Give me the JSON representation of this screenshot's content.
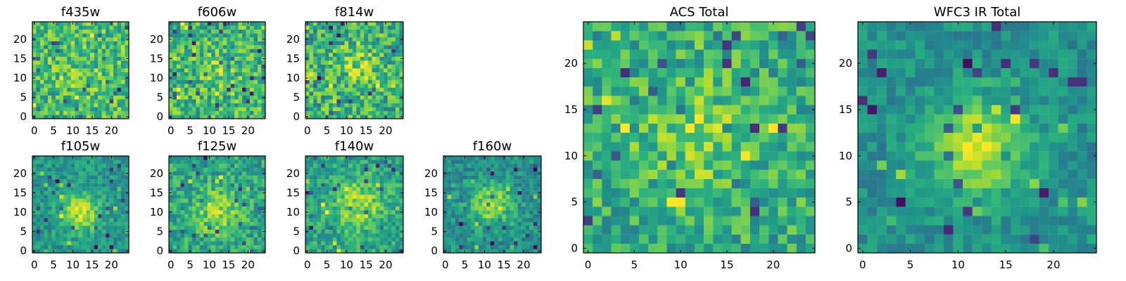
{
  "chart_data": {
    "type": "heatmap",
    "colormap": "viridis",
    "grid": false,
    "colors": {
      "viridis": [
        "#440154",
        "#472c7a",
        "#3b528b",
        "#2c728e",
        "#21918c",
        "#28ae80",
        "#5ec962",
        "#addc30",
        "#fde725"
      ],
      "background": "#ffffff",
      "axes": "#000000"
    },
    "panels": [
      {
        "id": "f435w",
        "title": "f435w",
        "xlim": [
          0,
          25
        ],
        "ylim": [
          0,
          25
        ],
        "xticks": [
          0,
          5,
          10,
          15,
          20
        ],
        "yticks": [
          0,
          5,
          10,
          15,
          20
        ],
        "xtick_labels": [
          "0",
          "5",
          "10",
          "15",
          "20"
        ],
        "ytick_labels": [
          "0",
          "5",
          "10",
          "15",
          "20"
        ],
        "pixels": 25,
        "seed": 101,
        "background_level": 0.68,
        "noise": 0.22,
        "source_center": [
          12,
          10
        ],
        "source_peak": 0.08,
        "source_sigma": 4.0
      },
      {
        "id": "f606w",
        "title": "f606w",
        "xlim": [
          0,
          25
        ],
        "ylim": [
          0,
          25
        ],
        "xticks": [
          0,
          5,
          10,
          15,
          20
        ],
        "yticks": [
          0,
          5,
          10,
          15,
          20
        ],
        "xtick_labels": [
          "0",
          "5",
          "10",
          "15",
          "20"
        ],
        "ytick_labels": [
          "0",
          "5",
          "10",
          "15",
          "20"
        ],
        "pixels": 25,
        "seed": 202,
        "background_level": 0.65,
        "noise": 0.23,
        "source_center": [
          12,
          12
        ],
        "source_peak": 0.12,
        "source_sigma": 4.0
      },
      {
        "id": "f814w",
        "title": "f814w",
        "xlim": [
          0,
          25
        ],
        "ylim": [
          0,
          25
        ],
        "xticks": [
          0,
          5,
          10,
          15,
          20
        ],
        "yticks": [
          0,
          5,
          10,
          15,
          20
        ],
        "xtick_labels": [
          "0",
          "5",
          "10",
          "15",
          "20"
        ],
        "ytick_labels": [
          "0",
          "5",
          "10",
          "15",
          "20"
        ],
        "pixels": 25,
        "seed": 303,
        "background_level": 0.63,
        "noise": 0.24,
        "source_center": [
          13,
          13
        ],
        "source_peak": 0.18,
        "source_sigma": 3.8
      },
      {
        "id": "f105w",
        "title": "f105w",
        "xlim": [
          0,
          25
        ],
        "ylim": [
          0,
          25
        ],
        "xticks": [
          0,
          5,
          10,
          15,
          20
        ],
        "yticks": [
          0,
          5,
          10,
          15,
          20
        ],
        "xtick_labels": [
          "0",
          "5",
          "10",
          "15",
          "20"
        ],
        "ytick_labels": [
          "0",
          "5",
          "10",
          "15",
          "20"
        ],
        "pixels": 25,
        "seed": 404,
        "background_level": 0.52,
        "noise": 0.14,
        "source_center": [
          12,
          10
        ],
        "source_peak": 0.38,
        "source_sigma": 3.6
      },
      {
        "id": "f125w",
        "title": "f125w",
        "xlim": [
          0,
          25
        ],
        "ylim": [
          0,
          25
        ],
        "xticks": [
          0,
          5,
          10,
          15,
          20
        ],
        "yticks": [
          0,
          5,
          10,
          15,
          20
        ],
        "xtick_labels": [
          "0",
          "5",
          "10",
          "15",
          "20"
        ],
        "ytick_labels": [
          "0",
          "5",
          "10",
          "15",
          "20"
        ],
        "pixels": 25,
        "seed": 505,
        "background_level": 0.58,
        "noise": 0.18,
        "source_center": [
          12,
          10
        ],
        "source_peak": 0.26,
        "source_sigma": 4.2
      },
      {
        "id": "f140w",
        "title": "f140w",
        "xlim": [
          0,
          25
        ],
        "ylim": [
          0,
          25
        ],
        "xticks": [
          0,
          5,
          10,
          15,
          20
        ],
        "yticks": [
          0,
          5,
          10,
          15,
          20
        ],
        "xtick_labels": [
          "0",
          "5",
          "10",
          "15",
          "20"
        ],
        "ytick_labels": [
          "0",
          "5",
          "10",
          "15",
          "20"
        ],
        "pixels": 25,
        "seed": 606,
        "background_level": 0.58,
        "noise": 0.16,
        "source_center": [
          13,
          12
        ],
        "source_peak": 0.28,
        "source_sigma": 4.5
      },
      {
        "id": "f160w",
        "title": "f160w",
        "xlim": [
          0,
          25
        ],
        "ylim": [
          0,
          25
        ],
        "xticks": [
          0,
          5,
          10,
          15,
          20
        ],
        "yticks": [
          0,
          5,
          10,
          15,
          20
        ],
        "xtick_labels": [
          "0",
          "5",
          "10",
          "15",
          "20"
        ],
        "ytick_labels": [
          "0",
          "5",
          "10",
          "15",
          "20"
        ],
        "pixels": 25,
        "seed": 707,
        "background_level": 0.5,
        "noise": 0.15,
        "source_center": [
          12,
          12
        ],
        "source_peak": 0.4,
        "source_sigma": 3.4
      },
      {
        "id": "acs-total",
        "title": "ACS Total",
        "xlim": [
          0,
          25
        ],
        "ylim": [
          0,
          25
        ],
        "xticks": [
          0,
          5,
          10,
          15,
          20
        ],
        "yticks": [
          0,
          5,
          10,
          15,
          20
        ],
        "xtick_labels": [
          "0",
          "5",
          "10",
          "15",
          "20"
        ],
        "ytick_labels": [
          "0",
          "5",
          "10",
          "15",
          "20"
        ],
        "pixels": 25,
        "seed": 808,
        "background_level": 0.62,
        "noise": 0.2,
        "source_center": [
          12,
          12
        ],
        "source_peak": 0.18,
        "source_sigma": 4.5
      },
      {
        "id": "wfc3-ir-total",
        "title": "WFC3 IR Total",
        "xlim": [
          0,
          25
        ],
        "ylim": [
          0,
          25
        ],
        "xticks": [
          0,
          5,
          10,
          15,
          20
        ],
        "yticks": [
          0,
          5,
          10,
          15,
          20
        ],
        "xtick_labels": [
          "0",
          "5",
          "10",
          "15",
          "20"
        ],
        "ytick_labels": [
          "0",
          "5",
          "10",
          "15",
          "20"
        ],
        "pixels": 25,
        "seed": 909,
        "background_level": 0.5,
        "noise": 0.12,
        "source_center": [
          12,
          11
        ],
        "source_peak": 0.45,
        "source_sigma": 3.4
      }
    ]
  }
}
